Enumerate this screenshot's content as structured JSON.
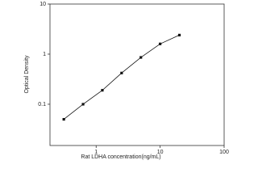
{
  "chart_data": {
    "type": "line",
    "log_x": true,
    "log_y": true,
    "x_label": "Rat LDHA concentration(ng/mL)",
    "y_label": "Optical Density",
    "x": [
      0.3125,
      0.625,
      1.25,
      2.5,
      5,
      10,
      20
    ],
    "series": [
      {
        "color": "#111111",
        "values": [
          0.05,
          0.1,
          0.19,
          0.42,
          0.86,
          1.6,
          2.4
        ]
      }
    ],
    "xlim": [
      0.19,
      100
    ],
    "xticks": [
      1,
      10,
      100
    ],
    "ylim": [
      0.015,
      10
    ],
    "yticks": [
      0.1,
      1,
      10
    ]
  }
}
